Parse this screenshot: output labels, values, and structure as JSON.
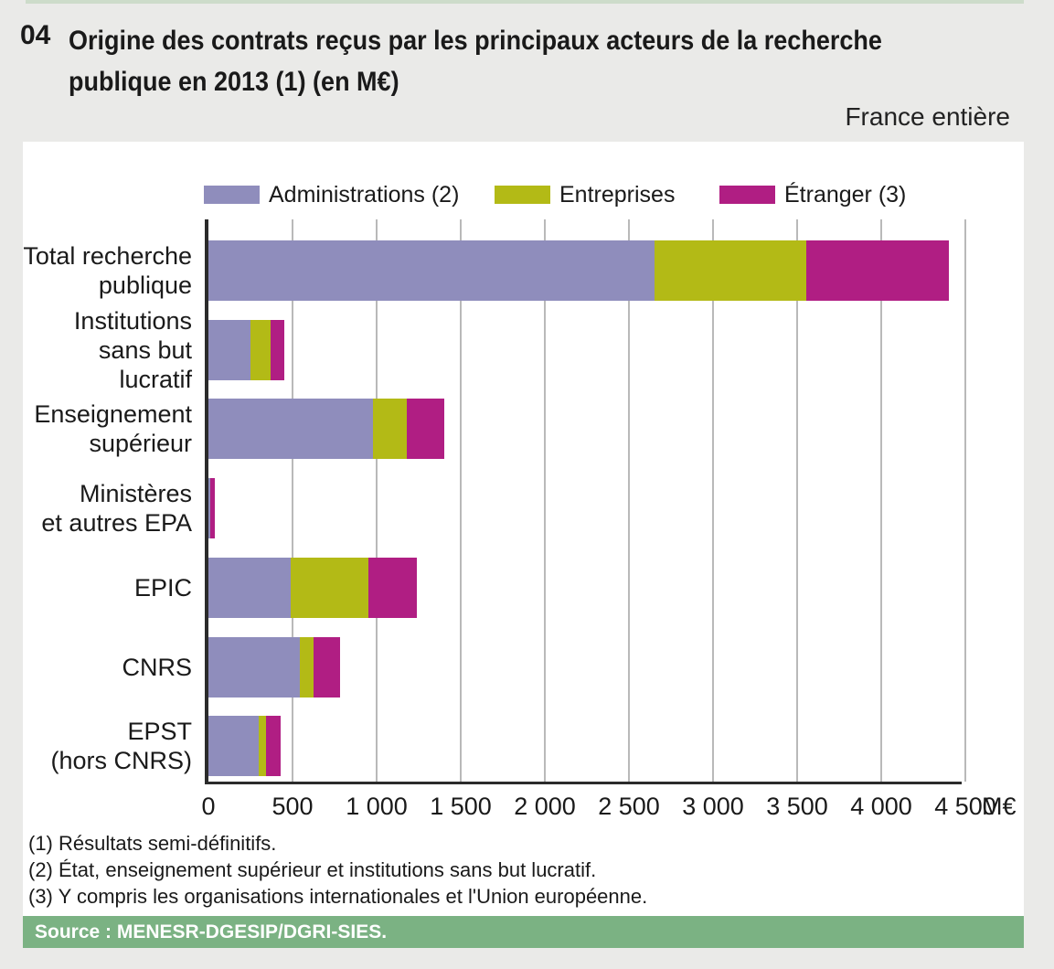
{
  "figure": {
    "number": "04",
    "title_line1": "Origine des contrats reçus par les principaux acteurs de la recherche",
    "title_line2": "publique en 2013 (1) (en M€)",
    "region_label": "France entière"
  },
  "colors": {
    "administrations": "#8f8dbc",
    "entreprises": "#b3ba16",
    "etranger": "#b01e83",
    "source_banner": "#7bb283",
    "top_strip": "#cddcca",
    "page_bg": "#eaeae8",
    "gridline": "#b9b9b9",
    "axis": "#2b2b2b"
  },
  "chart_data": {
    "type": "bar",
    "orientation": "horizontal-stacked",
    "title": "Origine des contrats reçus par les principaux acteurs de la recherche publique en 2013 (en M€)",
    "unit": "M€",
    "categories": [
      [
        "Total recherche",
        "publique"
      ],
      [
        "Institutions",
        "sans but lucratif"
      ],
      [
        "Enseignement",
        "supérieur"
      ],
      [
        "Ministères",
        "et autres EPA"
      ],
      [
        "EPIC"
      ],
      [
        "CNRS"
      ],
      [
        "EPST",
        "(hors CNRS)"
      ]
    ],
    "series": [
      {
        "name": "Administrations (2)",
        "color": "#8f8dbc",
        "values": [
          2650,
          250,
          980,
          10,
          490,
          545,
          300
        ]
      },
      {
        "name": "Entreprises",
        "color": "#b3ba16",
        "values": [
          905,
          120,
          200,
          0,
          460,
          80,
          45
        ]
      },
      {
        "name": "Étranger (3)",
        "color": "#b01e83",
        "values": [
          845,
          80,
          220,
          30,
          290,
          155,
          85
        ]
      }
    ],
    "xlim": [
      0,
      4500
    ],
    "xticks": [
      0,
      500,
      1000,
      1500,
      2000,
      2500,
      3000,
      3500,
      4000,
      4500
    ],
    "xtick_labels": [
      "0",
      "500",
      "1 000",
      "1 500",
      "2 000",
      "2 500",
      "3 000",
      "3 500",
      "4 000",
      "4 500"
    ],
    "axis_unit_label": "M€",
    "grid": true,
    "legend_position": "top"
  },
  "footnotes": [
    "(1) Résultats semi-définitifs.",
    "(2) État, enseignement supérieur et institutions sans but lucratif.",
    "(3) Y compris les organisations internationales et l'Union européenne."
  ],
  "source": "Source : MENESR-DGESIP/DGRI-SIES."
}
